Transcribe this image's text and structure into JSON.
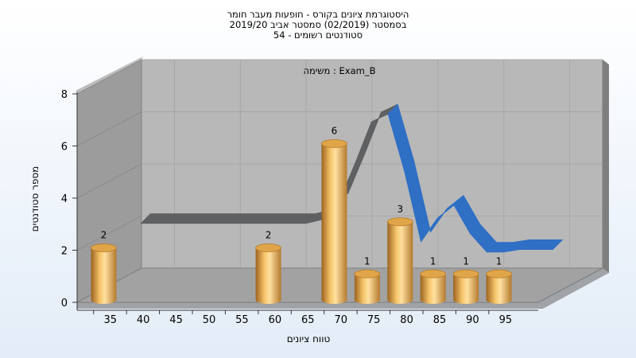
{
  "chart_data": {
    "type": "bar",
    "title_lines": [
      "היסטוגרמת ציונים בקורס - חופעות מעבר חומר",
      "בסמסטר  (02/2019)  סמסטר אביב 2019/20",
      "סטודנטים רשומים - 54"
    ],
    "annotation": "משימה : Exam_B",
    "xlabel": "טווח ציונים",
    "ylabel": "מספר סטודנטים",
    "x_ticks": [
      "35",
      "40",
      "45",
      "50",
      "55",
      "60",
      "65",
      "70",
      "75",
      "80",
      "85",
      "90",
      "95"
    ],
    "y_ticks": [
      "0",
      "2",
      "4",
      "6",
      "8"
    ],
    "ylim": [
      0,
      8
    ],
    "bars": [
      {
        "category": "35",
        "value": 2,
        "label": "2",
        "color": "#d81010"
      },
      {
        "category": "60",
        "value": 2,
        "label": "2",
        "color": "#d89a3a"
      },
      {
        "category": "70",
        "value": 6,
        "label": "6",
        "color": "#d89a3a"
      },
      {
        "category": "75",
        "value": 1,
        "label": "1",
        "color": "#d89a3a"
      },
      {
        "category": "80",
        "value": 3,
        "label": "3",
        "color": "#d89a3a"
      },
      {
        "category": "85",
        "value": 1,
        "label": "1",
        "color": "#d89a3a"
      },
      {
        "category": "90",
        "value": 1,
        "label": "1",
        "color": "#d89a3a"
      },
      {
        "category": "95",
        "value": 1,
        "label": "1",
        "color": "#d89a3a"
      }
    ],
    "trend_line": {
      "x": [
        37.5,
        42.5,
        47.5,
        52.5,
        57.5,
        62.5,
        65,
        67.5,
        70,
        72.5,
        75,
        77.5,
        80,
        82.5,
        85,
        87.5,
        90,
        92.5,
        95,
        97.5,
        100
      ],
      "y": [
        3,
        3,
        3,
        3,
        3,
        3,
        3.15,
        3.8,
        5.3,
        6.9,
        7.2,
        5.0,
        2.3,
        3.2,
        3.7,
        2.6,
        1.9,
        1.9,
        2.0,
        2.0,
        2.0
      ],
      "highlight_from": 75,
      "color_main": "#5f6062",
      "color_highlight": "#2f6fc4"
    },
    "grid": true,
    "colors": {
      "back_wall": "#b8b8b8",
      "left_wall": "#9c9c9c",
      "floor": "#a2a2a2",
      "border": "#808080"
    }
  }
}
